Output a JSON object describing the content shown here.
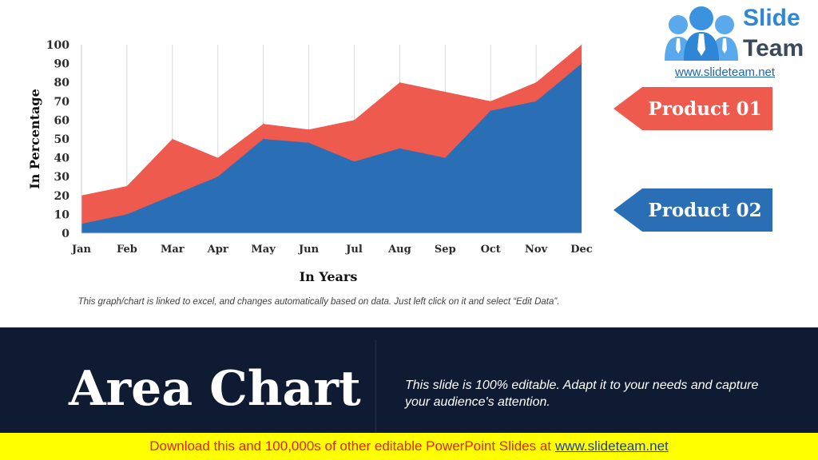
{
  "chart_data": {
    "type": "area",
    "stacked": false,
    "categories": [
      "Jan",
      "Feb",
      "Mar",
      "Apr",
      "May",
      "Jun",
      "Jul",
      "Aug",
      "Sep",
      "Oct",
      "Nov",
      "Dec"
    ],
    "series": [
      {
        "name": "Product 01",
        "color": "#ef5a4e",
        "values": [
          20,
          25,
          50,
          40,
          58,
          55,
          60,
          80,
          75,
          70,
          80,
          100
        ]
      },
      {
        "name": "Product 02",
        "color": "#2a6fb6",
        "values": [
          5,
          10,
          20,
          30,
          50,
          48,
          38,
          45,
          40,
          65,
          70,
          90
        ]
      }
    ],
    "yticks": [
      "0",
      "10",
      "20",
      "30",
      "40",
      "50",
      "60",
      "70",
      "80",
      "90",
      "100"
    ],
    "ylim": [
      0,
      100
    ],
    "xlabel": "In Years",
    "ylabel": "In Percentage",
    "grid": "vertical"
  },
  "note": "This graph/chart is linked to excel, and changes automatically based on data. Just left click on it and select “Edit Data”.",
  "legend": {
    "product1": "Product 01",
    "product2": "Product 02",
    "product1_color": "#ef5a4e",
    "product2_color": "#2a6fb6"
  },
  "logo": {
    "word1": "Slide",
    "word2": "Team",
    "url": "www.slideteam.net",
    "icon": "people-group-icon"
  },
  "banner": {
    "title": "Area Chart",
    "description": "This slide is 100% editable. Adapt it to your needs and capture your audience's attention."
  },
  "footer": {
    "text": "Download this and 100,000s of other editable PowerPoint Slides at",
    "link": "www.slideteam.net"
  }
}
